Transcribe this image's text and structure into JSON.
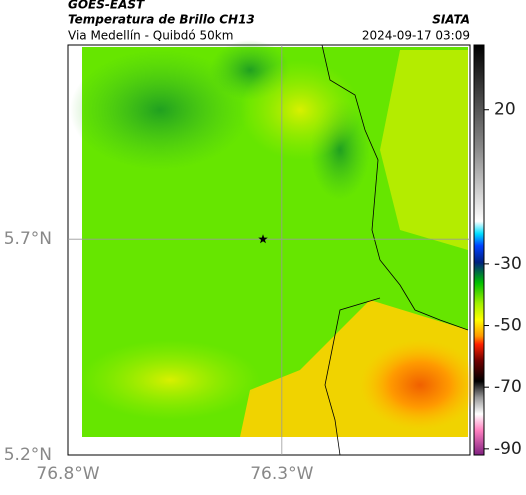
{
  "header": {
    "source": "GOES-EAST",
    "title": "Temperatura de Brillo CH13",
    "brand": "SIATA",
    "subtitle": "Via Medellín - Quibdó 50km",
    "timestamp": "2024-09-17 03:09"
  },
  "map": {
    "xlim": [
      -76.8,
      -75.86
    ],
    "ylim": [
      5.2,
      6.15
    ],
    "xticks": [
      {
        "value": -76.8,
        "label": "76.8°W"
      },
      {
        "value": -76.3,
        "label": "76.3°W"
      }
    ],
    "yticks": [
      {
        "value": 5.2,
        "label": "5.2°N"
      },
      {
        "value": 5.7,
        "label": "5.7°N"
      }
    ],
    "grid": true,
    "marker": {
      "lon": -76.344,
      "lat": 5.7
    }
  },
  "colorbar": {
    "lim": [
      -92,
      41
    ],
    "ticks": [
      20,
      -30,
      -50,
      -70,
      -90
    ]
  }
}
